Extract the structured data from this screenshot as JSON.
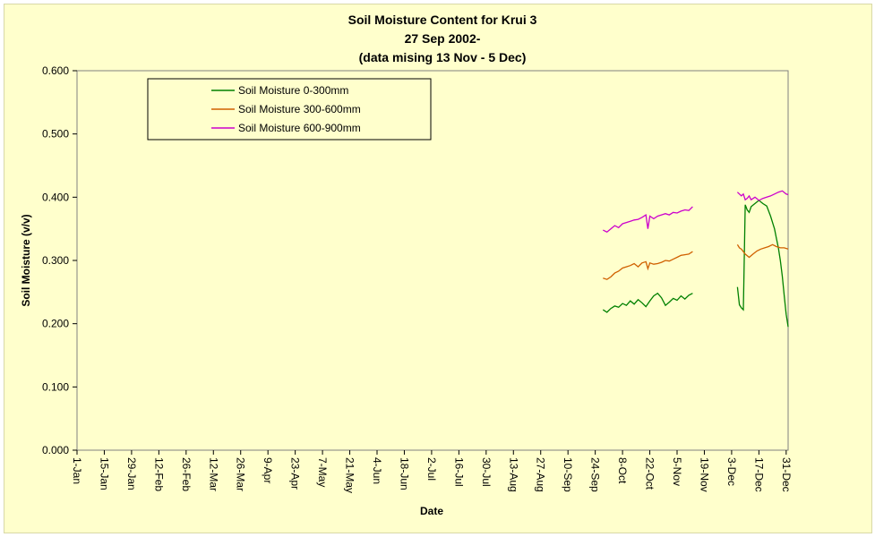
{
  "chart_data": {
    "type": "line",
    "title_lines": [
      "Soil Moisture Content for Krui 3",
      "27 Sep 2002-",
      "(data mising 13 Nov - 5 Dec)"
    ],
    "xlabel": "Date",
    "ylabel": "Soil Moisture (v/v)",
    "xlim": [
      0,
      365
    ],
    "ylim": [
      0,
      0.6
    ],
    "y_ticks": [
      "0.000",
      "0.100",
      "0.200",
      "0.300",
      "0.400",
      "0.500",
      "0.600"
    ],
    "x_ticks": [
      "1-Jan",
      "15-Jan",
      "29-Jan",
      "12-Feb",
      "26-Feb",
      "12-Mar",
      "26-Mar",
      "9-Apr",
      "23-Apr",
      "7-May",
      "21-May",
      "4-Jun",
      "18-Jun",
      "2-Jul",
      "16-Jul",
      "30-Jul",
      "13-Aug",
      "27-Aug",
      "10-Sep",
      "24-Sep",
      "8-Oct",
      "22-Oct",
      "5-Nov",
      "19-Nov",
      "3-Dec",
      "17-Dec",
      "31-Dec"
    ],
    "grid": false,
    "legend_position": "top-left",
    "series": [
      {
        "name": "Soil Moisture 0-300mm",
        "color": "#008000",
        "segments": [
          {
            "x": [
              270,
              272,
              274,
              276,
              278,
              280,
              282,
              284,
              286,
              288,
              290,
              292,
              294,
              296,
              298,
              300,
              302,
              304,
              306,
              308,
              310,
              312,
              314,
              316
            ],
            "y": [
              0.222,
              0.218,
              0.224,
              0.228,
              0.226,
              0.232,
              0.229,
              0.236,
              0.231,
              0.238,
              0.233,
              0.227,
              0.236,
              0.244,
              0.248,
              0.241,
              0.229,
              0.234,
              0.24,
              0.237,
              0.244,
              0.239,
              0.245,
              0.248
            ]
          },
          {
            "x": [
              339,
              340,
              341,
              342,
              343,
              344,
              345,
              346,
              348,
              350,
              352,
              354,
              356,
              358,
              359,
              360,
              361,
              362,
              363,
              364,
              365
            ],
            "y": [
              0.258,
              0.23,
              0.225,
              0.222,
              0.388,
              0.38,
              0.376,
              0.385,
              0.39,
              0.395,
              0.39,
              0.386,
              0.37,
              0.35,
              0.335,
              0.32,
              0.3,
              0.275,
              0.245,
              0.215,
              0.195
            ]
          }
        ]
      },
      {
        "name": "Soil Moisture 300-600mm",
        "color": "#d06000",
        "segments": [
          {
            "x": [
              270,
              272,
              274,
              276,
              278,
              280,
              282,
              284,
              286,
              288,
              290,
              292,
              293,
              294,
              296,
              298,
              300,
              302,
              304,
              306,
              308,
              310,
              312,
              314,
              316
            ],
            "y": [
              0.272,
              0.27,
              0.274,
              0.28,
              0.283,
              0.288,
              0.29,
              0.292,
              0.295,
              0.29,
              0.296,
              0.298,
              0.287,
              0.296,
              0.294,
              0.295,
              0.297,
              0.3,
              0.299,
              0.302,
              0.305,
              0.308,
              0.309,
              0.31,
              0.314
            ]
          },
          {
            "x": [
              339,
              340,
              341,
              343,
              345,
              347,
              349,
              351,
              353,
              355,
              357,
              359,
              361,
              363,
              365
            ],
            "y": [
              0.325,
              0.32,
              0.318,
              0.31,
              0.305,
              0.31,
              0.315,
              0.318,
              0.32,
              0.322,
              0.325,
              0.322,
              0.32,
              0.32,
              0.318
            ]
          }
        ]
      },
      {
        "name": "Soil Moisture 600-900mm",
        "color": "#cc00cc",
        "segments": [
          {
            "x": [
              270,
              272,
              274,
              276,
              278,
              280,
              282,
              284,
              286,
              288,
              290,
              292,
              293,
              294,
              296,
              298,
              300,
              302,
              304,
              306,
              308,
              310,
              312,
              314,
              316
            ],
            "y": [
              0.348,
              0.345,
              0.35,
              0.355,
              0.352,
              0.358,
              0.36,
              0.362,
              0.364,
              0.365,
              0.368,
              0.372,
              0.35,
              0.37,
              0.366,
              0.37,
              0.372,
              0.374,
              0.372,
              0.376,
              0.375,
              0.378,
              0.38,
              0.379,
              0.385
            ]
          },
          {
            "x": [
              339,
              340,
              341,
              342,
              343,
              344,
              345,
              346,
              348,
              350,
              352,
              354,
              356,
              358,
              360,
              362,
              364,
              365
            ],
            "y": [
              0.408,
              0.405,
              0.402,
              0.405,
              0.396,
              0.398,
              0.402,
              0.396,
              0.4,
              0.395,
              0.398,
              0.4,
              0.402,
              0.405,
              0.408,
              0.41,
              0.405,
              0.404
            ]
          }
        ]
      }
    ]
  }
}
